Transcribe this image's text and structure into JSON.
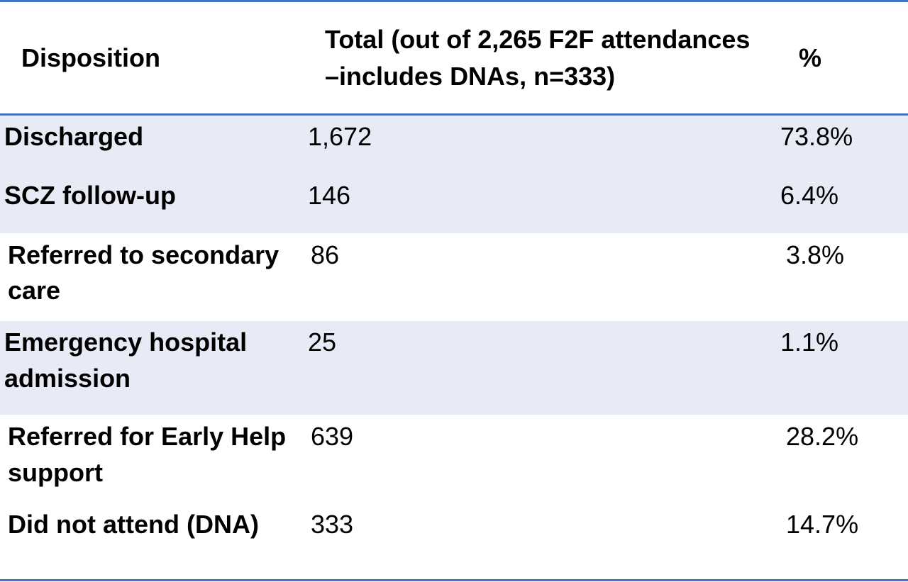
{
  "table": {
    "headers": {
      "disposition": "Disposition",
      "total_line1": "Total (out of 2,265 F2F attendances",
      "total_line2": "–includes DNAs, n=333)",
      "percent": "%"
    },
    "rows": [
      {
        "label_line1": "Discharged",
        "label_line2": "",
        "total": "1,672",
        "percent": "73.8%"
      },
      {
        "label_line1": "SCZ follow-up",
        "label_line2": "",
        "total": "146",
        "percent": "6.4%"
      },
      {
        "label_line1": "Referred to secondary",
        "label_line2": "care",
        "total": "86",
        "percent": "3.8%"
      },
      {
        "label_line1": "Emergency hospital",
        "label_line2": "admission",
        "total": "25",
        "percent": "1.1%"
      },
      {
        "label_line1": "Referred for Early Help",
        "label_line2": "support",
        "total": "639",
        "percent": "28.2%"
      },
      {
        "label_line1": "Did not attend (DNA)",
        "label_line2": "",
        "total": "333",
        "percent": "14.7%"
      }
    ]
  },
  "colors": {
    "rule": "#4472c4",
    "band": "#e8ebf5"
  }
}
